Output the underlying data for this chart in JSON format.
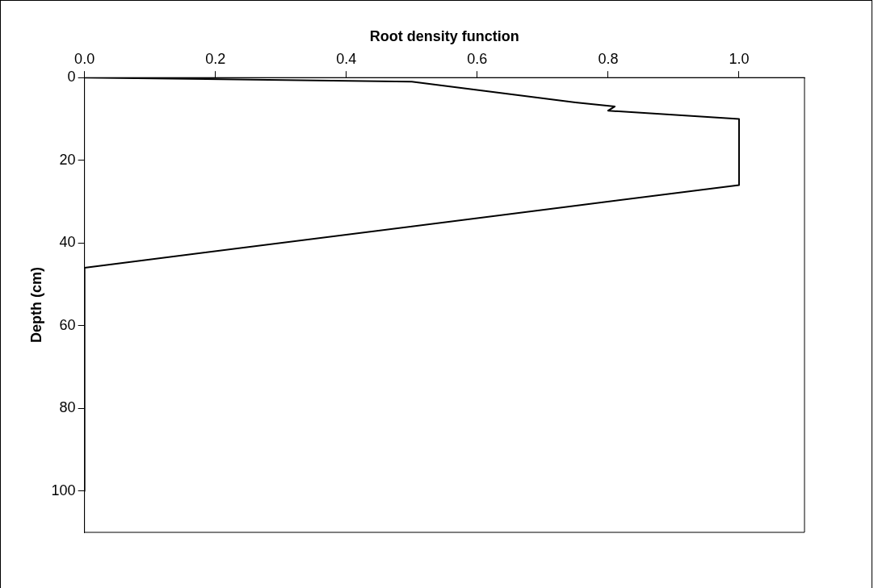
{
  "chart_data": {
    "type": "line",
    "xlabel": "Root density function",
    "ylabel": "Depth (cm)",
    "x": [
      0,
      0.5,
      0.75,
      0.81,
      0.8,
      1.0,
      1.0,
      0,
      0
    ],
    "values": [
      0,
      1,
      6,
      7,
      8,
      10,
      26,
      46,
      100
    ],
    "color": "#000000",
    "marker": "none",
    "line_style": "solid",
    "grid": false,
    "legend": false,
    "xlim": [
      0,
      1.1
    ],
    "xticks": [
      {
        "value": 0,
        "label": "0.0"
      },
      {
        "value": 0.2,
        "label": "0.2"
      },
      {
        "value": 0.4,
        "label": "0.4"
      },
      {
        "value": 0.6,
        "label": "0.6"
      },
      {
        "value": 0.8,
        "label": "0.8"
      },
      {
        "value": 1.0,
        "label": "1.0"
      }
    ],
    "ylim": [
      110,
      0
    ],
    "yticks": [
      0,
      20,
      40,
      60,
      80,
      100
    ]
  }
}
